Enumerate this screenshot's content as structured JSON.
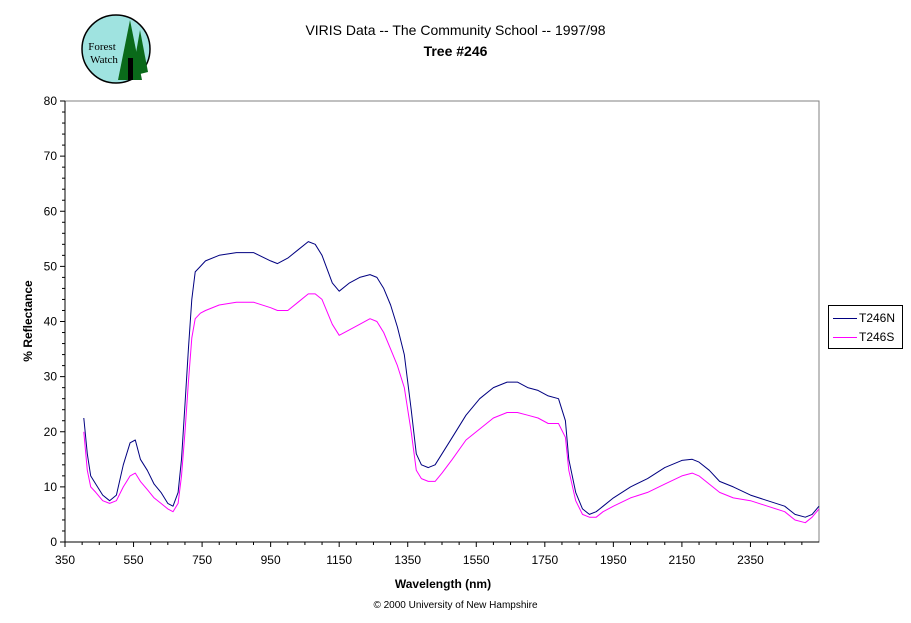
{
  "logo": {
    "text_line1": "Forest",
    "text_line2": "Watch",
    "colors": {
      "background": "#9fe3e0",
      "tree": "#0a6a1a",
      "border": "#000000"
    }
  },
  "copyright": "© 2000 University of New Hampshire",
  "chart_data": {
    "type": "line",
    "title": "VIRIS Data -- The Community School -- 1997/98",
    "subtitle": "Tree #246",
    "xlabel": "Wavelength (nm)",
    "ylabel": "% Reflectance",
    "xlim": [
      350,
      2550
    ],
    "ylim": [
      0,
      80
    ],
    "x_ticks": [
      350,
      550,
      750,
      950,
      1150,
      1350,
      1550,
      1750,
      1950,
      2150,
      2350
    ],
    "y_ticks": [
      0,
      10,
      20,
      30,
      40,
      50,
      60,
      70,
      80
    ],
    "grid": false,
    "legend_position": "right",
    "series": [
      {
        "name": "T246N",
        "color": "#000080",
        "x": [
          405,
          415,
          425,
          440,
          460,
          480,
          500,
          520,
          540,
          555,
          570,
          590,
          610,
          630,
          650,
          665,
          680,
          690,
          700,
          710,
          720,
          730,
          745,
          760,
          800,
          850,
          900,
          950,
          970,
          1000,
          1030,
          1060,
          1080,
          1100,
          1130,
          1150,
          1180,
          1210,
          1240,
          1260,
          1280,
          1300,
          1320,
          1340,
          1360,
          1375,
          1390,
          1410,
          1430,
          1450,
          1480,
          1520,
          1560,
          1600,
          1640,
          1670,
          1700,
          1730,
          1760,
          1790,
          1810,
          1820,
          1840,
          1860,
          1880,
          1900,
          1920,
          1950,
          2000,
          2050,
          2100,
          2150,
          2180,
          2200,
          2230,
          2260,
          2300,
          2350,
          2400,
          2450,
          2480,
          2510,
          2530,
          2550
        ],
        "values": [
          22.5,
          16,
          12,
          10.5,
          8.5,
          7.5,
          8.5,
          14,
          18,
          18.5,
          15,
          13,
          10.5,
          9,
          7,
          6.5,
          9,
          15,
          25,
          35,
          44,
          49,
          50,
          51,
          52,
          52.5,
          52.5,
          51,
          50.5,
          51.5,
          53,
          54.5,
          54,
          52,
          47,
          45.5,
          47,
          48,
          48.5,
          48,
          46,
          43,
          39,
          34,
          24,
          16,
          14,
          13.5,
          14,
          16,
          19,
          23,
          26,
          28,
          29,
          29,
          28,
          27.5,
          26.5,
          26,
          22,
          15,
          9,
          6,
          5,
          5.5,
          6.5,
          8,
          10,
          11.5,
          13.5,
          14.8,
          15,
          14.5,
          13,
          11,
          10,
          8.5,
          7.5,
          6.5,
          5,
          4.5,
          5,
          6.5
        ]
      },
      {
        "name": "T246S",
        "color": "#ff00ff",
        "x": [
          405,
          415,
          425,
          440,
          460,
          480,
          500,
          520,
          540,
          555,
          570,
          590,
          610,
          630,
          650,
          665,
          680,
          690,
          700,
          710,
          720,
          730,
          745,
          760,
          800,
          850,
          900,
          950,
          970,
          1000,
          1030,
          1060,
          1080,
          1100,
          1130,
          1150,
          1180,
          1210,
          1240,
          1260,
          1280,
          1300,
          1320,
          1340,
          1360,
          1375,
          1390,
          1410,
          1430,
          1450,
          1480,
          1520,
          1560,
          1600,
          1640,
          1670,
          1700,
          1730,
          1760,
          1790,
          1810,
          1820,
          1840,
          1860,
          1880,
          1900,
          1920,
          1950,
          2000,
          2050,
          2100,
          2150,
          2180,
          2200,
          2230,
          2260,
          2300,
          2350,
          2400,
          2450,
          2480,
          2510,
          2530,
          2550
        ],
        "values": [
          20,
          13,
          10,
          9,
          7.5,
          7,
          7.5,
          10,
          12,
          12.5,
          11,
          9.5,
          8,
          7,
          6,
          5.5,
          7,
          12,
          20,
          29,
          37,
          40.5,
          41.5,
          42,
          43,
          43.5,
          43.5,
          42.5,
          42,
          42,
          43.5,
          45,
          45,
          44,
          39.5,
          37.5,
          38.5,
          39.5,
          40.5,
          40,
          38,
          35,
          32,
          28,
          20,
          13,
          11.5,
          11,
          11,
          12.5,
          15,
          18.5,
          20.5,
          22.5,
          23.5,
          23.5,
          23,
          22.5,
          21.5,
          21.5,
          19,
          13,
          7.5,
          5,
          4.5,
          4.5,
          5.5,
          6.5,
          8,
          9,
          10.5,
          12,
          12.5,
          12,
          10.5,
          9,
          8,
          7.5,
          6.5,
          5.5,
          4,
          3.5,
          4.5,
          6
        ]
      }
    ]
  }
}
